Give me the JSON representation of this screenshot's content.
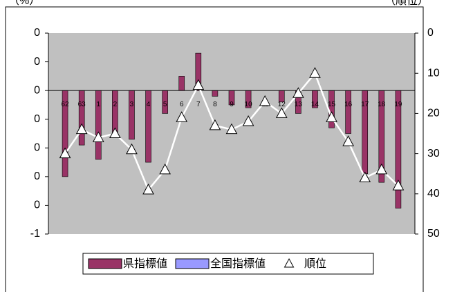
{
  "chart_data": {
    "type": "bar-line",
    "y_label": "（%）",
    "y2_label": "（順位）",
    "categories": [
      "62",
      "63",
      "1",
      "2",
      "3",
      "4",
      "5",
      "6",
      "7",
      "8",
      "9",
      "10",
      "11",
      "12",
      "13",
      "14",
      "15",
      "16",
      "17",
      "18",
      "19"
    ],
    "series": [
      {
        "name": "県指標値",
        "color": "#993366",
        "type": "bar",
        "values": [
          -0.3,
          -0.19,
          -0.24,
          -0.15,
          -0.17,
          -0.25,
          -0.08,
          0.05,
          0.13,
          -0.02,
          -0.05,
          -0.06,
          0,
          -0.04,
          -0.08,
          -0.06,
          -0.13,
          -0.15,
          -0.29,
          -0.32,
          -0.41
        ]
      },
      {
        "name": "全国指標値",
        "color": "#9999ff",
        "type": "bar",
        "values": [
          null,
          null,
          null,
          null,
          null,
          null,
          null,
          null,
          null,
          null,
          null,
          null,
          null,
          null,
          null,
          null,
          null,
          null,
          null,
          null,
          null
        ]
      },
      {
        "name": "順位",
        "color": "#ffffff",
        "type": "line",
        "axis": "y2",
        "values": [
          30,
          24,
          26,
          25,
          29,
          39,
          34,
          21,
          13,
          23,
          24,
          22,
          17,
          20,
          15,
          10,
          21,
          27,
          36,
          34,
          38
        ]
      }
    ],
    "ylim": [
      -0.5,
      0.2
    ],
    "yticks": [
      {
        "value": 0.2,
        "label": "0"
      },
      {
        "value": 0.1,
        "label": "0"
      },
      0,
      {
        "value": -0.1,
        "label": "0"
      },
      {
        "value": -0.2,
        "label": "0"
      },
      {
        "value": -0.3,
        "label": "0"
      },
      {
        "value": -0.4,
        "label": "0"
      },
      {
        "value": -0.5,
        "label": "-1"
      }
    ],
    "y2lim": [
      0,
      50
    ],
    "y2ticks": [
      0,
      10,
      20,
      30,
      40,
      50
    ],
    "y2_inverted": true,
    "plot_background": "#c0c0c0"
  }
}
